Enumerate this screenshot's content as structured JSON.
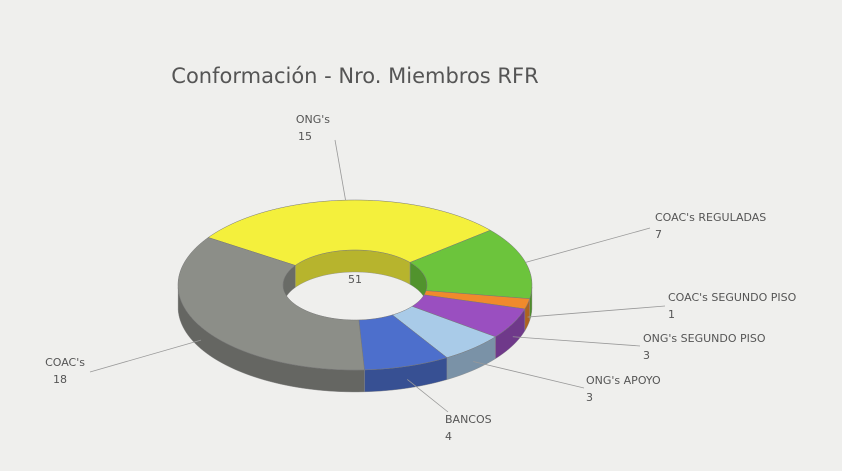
{
  "chart_data": {
    "type": "donut",
    "title": "Conformación - Nro. Miembros RFR",
    "total": 51,
    "categories": [
      "ONG's",
      "COAC's REGULADAS",
      "COAC's SEGUNDO PISO",
      "ONG's SEGUNDO PISO",
      "ONG's APOYO",
      "BANCOS",
      "COAC's"
    ],
    "values": [
      15,
      7,
      1,
      3,
      3,
      4,
      18
    ],
    "colors": [
      "#f4f03c",
      "#6cc43c",
      "#f08a2c",
      "#9a4fc0",
      "#a9cbe8",
      "#4d6fcc",
      "#8c8e88"
    ]
  }
}
